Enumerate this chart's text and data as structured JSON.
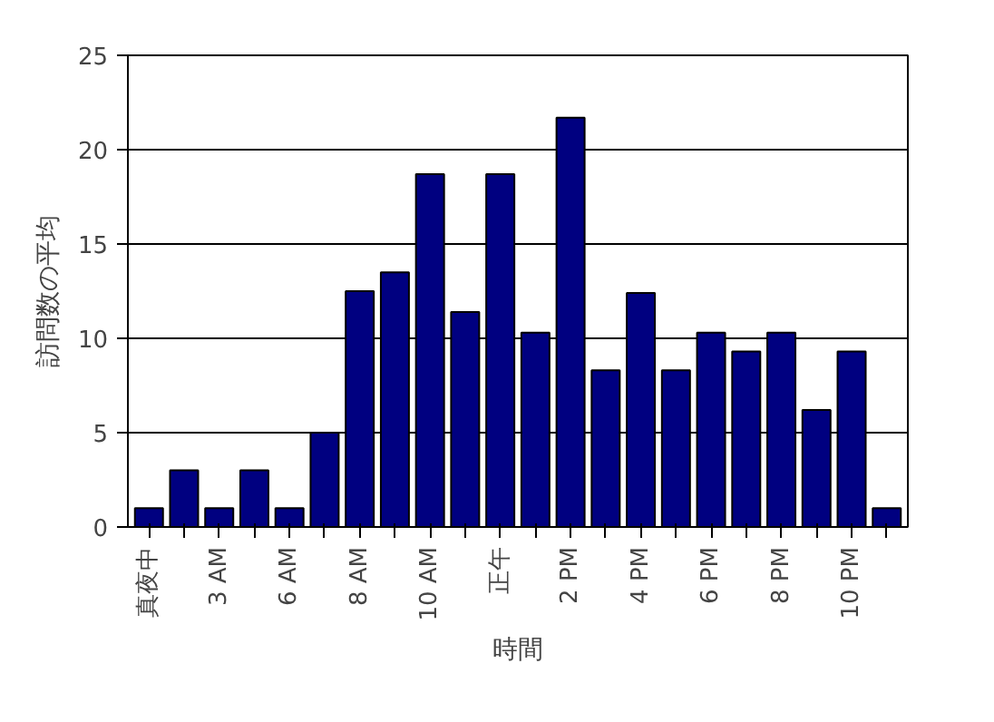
{
  "chart_data": {
    "type": "bar",
    "xlabel": "時間",
    "ylabel": "訪問数の平均",
    "categories": [
      "真夜中",
      null,
      "3 AM",
      null,
      "6 AM",
      null,
      "8 AM",
      null,
      "10 AM",
      null,
      "正午",
      null,
      "2 PM",
      null,
      "4 PM",
      null,
      "6 PM",
      null,
      "8 PM",
      null,
      "10 PM",
      null
    ],
    "values": [
      1,
      3,
      1,
      3,
      1,
      5,
      12.5,
      13.5,
      18.7,
      11.4,
      18.7,
      10.3,
      21.7,
      8.3,
      12.4,
      8.3,
      10.3,
      9.3,
      10.3,
      6.2,
      9.3,
      1
    ],
    "color": "#000080",
    "ylim": [
      0,
      25
    ],
    "yticks": [
      0,
      5,
      10,
      15,
      20,
      25
    ],
    "grid": "y"
  }
}
